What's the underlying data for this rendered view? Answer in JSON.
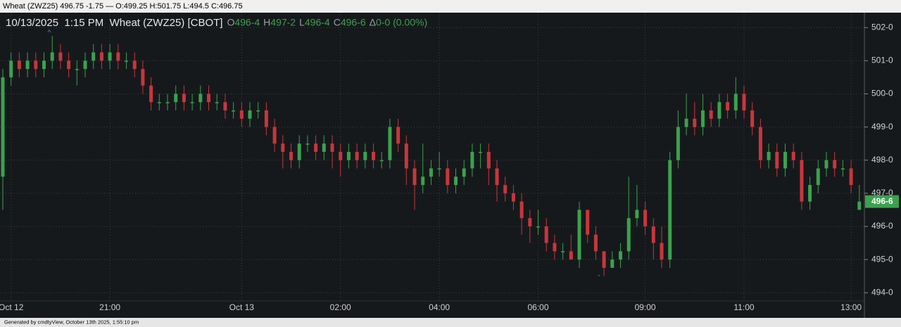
{
  "window_title": "Wheat (ZWZ25) 496.75 -1.75 — O:499.25 H:501.75 L:494.5 C:496.75",
  "footer": "Generated by cmdtyView, October 13th 2025, 1:55:10 pm",
  "chart_data": {
    "type": "candlestick",
    "title": "10/13/2025  1:15 PM  Wheat (ZWZ25) [CBOT]",
    "ohlc_legend": [
      {
        "label": "O",
        "value": "496-4"
      },
      {
        "label": "H",
        "value": "497-2"
      },
      {
        "label": "L",
        "value": "496-4"
      },
      {
        "label": "C",
        "value": "496-6"
      },
      {
        "label": "Δ",
        "value": "0-0 (0.00%)"
      }
    ],
    "up_color": "#3aa24d",
    "down_color": "#c8363c",
    "ylim": [
      493.75,
      502.45
    ],
    "yticks": [
      {
        "value": 494,
        "label": "494-0"
      },
      {
        "value": 495,
        "label": "495-0"
      },
      {
        "value": 496,
        "label": "496-0"
      },
      {
        "value": 497,
        "label": "497-0"
      },
      {
        "value": 498,
        "label": "498-0"
      },
      {
        "value": 499,
        "label": "499-0"
      },
      {
        "value": 500,
        "label": "500-0"
      },
      {
        "value": 501,
        "label": "501-0"
      },
      {
        "value": 502,
        "label": "502-0"
      }
    ],
    "last_price": {
      "value": 496.75,
      "label": "496-6"
    },
    "grid": true,
    "categories": [
      null,
      "Oct 12",
      null,
      null,
      null,
      null,
      null,
      null,
      null,
      null,
      null,
      null,
      null,
      "21:00",
      null,
      null,
      null,
      null,
      null,
      null,
      null,
      null,
      null,
      null,
      null,
      null,
      null,
      null,
      null,
      "Oct 13",
      null,
      null,
      null,
      null,
      null,
      null,
      null,
      null,
      null,
      null,
      null,
      "02:00",
      null,
      null,
      null,
      null,
      null,
      null,
      null,
      null,
      null,
      null,
      null,
      "04:00",
      null,
      null,
      null,
      null,
      null,
      null,
      null,
      null,
      null,
      null,
      null,
      "06:00",
      null,
      null,
      null,
      null,
      null,
      null,
      null,
      null,
      null,
      null,
      null,
      null,
      "09:00",
      null,
      null,
      null,
      null,
      null,
      null,
      null,
      null,
      null,
      null,
      null,
      "11:00",
      null,
      null,
      null,
      null,
      null,
      null,
      null,
      null,
      null,
      null,
      null,
      null,
      "13:00",
      null
    ],
    "open": [
      497.5,
      500.5,
      501,
      500.75,
      501,
      500.75,
      501,
      501.25,
      501,
      500.75,
      500.75,
      501,
      501.25,
      501,
      501.25,
      501,
      501,
      500.75,
      500.25,
      499.75,
      499.75,
      499.75,
      500,
      499.75,
      499.75,
      500,
      499.75,
      499.75,
      499.5,
      499.5,
      499.25,
      499.5,
      499.5,
      499,
      498.5,
      498.25,
      498,
      498.5,
      498.5,
      498.25,
      498.5,
      498.25,
      498,
      498.25,
      498,
      498.25,
      498,
      498,
      499,
      498.5,
      497.75,
      497.25,
      497.5,
      497.75,
      497.75,
      497.25,
      497.5,
      497.75,
      498.25,
      498.25,
      497.75,
      497.25,
      497,
      496.75,
      496.25,
      496,
      496,
      495.5,
      495.25,
      495.25,
      495,
      496.5,
      495.75,
      495.25,
      494.75,
      495,
      495.25,
      496.25,
      496.5,
      496,
      495.5,
      495,
      498,
      499,
      499.25,
      499,
      499.5,
      499.25,
      499.75,
      499.5,
      500,
      499.5,
      499,
      498,
      498.25,
      497.75,
      498.25,
      498,
      496.75,
      497.25,
      497.75,
      498,
      497.75,
      497.75,
      496.5
    ],
    "high": [
      500.75,
      501.25,
      501.25,
      501.25,
      501.25,
      501.25,
      501.75,
      501.5,
      501.25,
      501,
      501.25,
      501.5,
      501.5,
      501.5,
      501.5,
      501.25,
      501.25,
      501,
      500.5,
      500,
      500,
      500.25,
      500.25,
      500,
      500.25,
      500.25,
      500,
      500,
      499.75,
      499.75,
      499.75,
      499.75,
      499.75,
      499.25,
      498.75,
      498.5,
      498.75,
      498.75,
      498.75,
      498.75,
      498.75,
      498.5,
      498.5,
      498.5,
      498.5,
      498.5,
      498.25,
      499.25,
      499.25,
      498.75,
      498,
      498.5,
      498,
      498.25,
      498,
      497.75,
      498,
      498.5,
      498.5,
      498.5,
      498,
      497.5,
      497.25,
      497,
      496.5,
      496.5,
      496.25,
      495.75,
      495.5,
      495.75,
      496.75,
      496.5,
      496,
      495.25,
      495.25,
      495.5,
      497.5,
      497.25,
      496.75,
      496.25,
      496,
      498.25,
      499.5,
      500,
      499.75,
      500,
      499.75,
      500,
      500,
      500.5,
      500.25,
      499.75,
      499.25,
      498.5,
      498.5,
      498.5,
      498.5,
      498.25,
      497.5,
      498,
      498.25,
      498.25,
      498,
      498,
      497.25
    ],
    "low": [
      496.5,
      500.25,
      500.5,
      500.5,
      500.5,
      500.5,
      500.75,
      500.75,
      500.5,
      500.25,
      500.5,
      500.75,
      500.75,
      500.75,
      500.75,
      500.75,
      500.5,
      500,
      499.5,
      499.5,
      499.5,
      499.5,
      499.5,
      499.5,
      499.5,
      499.5,
      499.5,
      499.25,
      499.25,
      499,
      499,
      499.25,
      498.75,
      498.25,
      497.75,
      497.75,
      497.75,
      498.25,
      498,
      498,
      497.75,
      497.5,
      497.75,
      497.75,
      497.75,
      497.75,
      497.75,
      497.75,
      498.25,
      497.25,
      496.5,
      497,
      497.25,
      497.5,
      497,
      497,
      497.25,
      497.5,
      497.75,
      497.25,
      496.75,
      496.75,
      496.5,
      495.75,
      495.5,
      495.75,
      495.25,
      495,
      495,
      495,
      494.75,
      495.5,
      495,
      494.5,
      494.75,
      494.75,
      495,
      496,
      495.75,
      495,
      494.75,
      494.75,
      497.75,
      498.75,
      498.75,
      498.75,
      499,
      499,
      499.25,
      499.25,
      499.25,
      498.75,
      497.75,
      497.75,
      497.5,
      497.5,
      497.75,
      496.5,
      496.5,
      497,
      497.5,
      497.5,
      497.5,
      497,
      496.5
    ],
    "close": [
      500.5,
      501,
      500.75,
      501,
      500.75,
      501,
      501.25,
      501,
      500.75,
      500.75,
      501,
      501.25,
      501,
      501.25,
      501,
      501,
      500.75,
      500.25,
      499.75,
      499.75,
      499.75,
      500,
      499.75,
      499.75,
      500,
      499.75,
      499.75,
      499.5,
      499.5,
      499.25,
      499.5,
      499.5,
      499,
      498.5,
      498.25,
      498,
      498.5,
      498.5,
      498.25,
      498.5,
      498.25,
      498,
      498.25,
      498,
      498.25,
      498,
      498,
      499,
      498.5,
      497.75,
      497.25,
      497.5,
      497.75,
      497.75,
      497.25,
      497.5,
      497.75,
      498.25,
      498.25,
      497.75,
      497.25,
      497,
      496.75,
      496.25,
      496,
      496,
      495.5,
      495.25,
      495.25,
      495,
      496.5,
      495.75,
      495.25,
      494.75,
      495,
      495.25,
      496.25,
      496.5,
      496,
      495.5,
      495,
      498,
      499,
      499.25,
      499,
      499.5,
      499.25,
      499.75,
      499.5,
      500,
      499.5,
      499,
      498,
      498.25,
      497.75,
      498.25,
      498,
      496.75,
      497.25,
      497.75,
      498,
      497.75,
      497.75,
      497.25,
      496.75
    ]
  }
}
